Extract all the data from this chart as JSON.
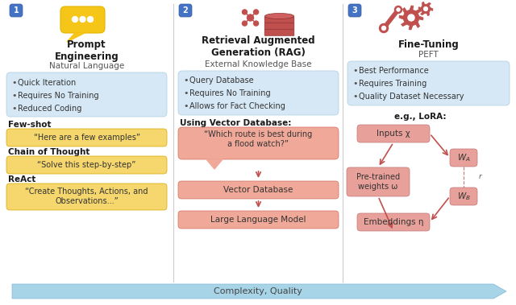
{
  "bg_color": "#ffffff",
  "blue_box_color": "#d6e8f5",
  "yellow_box_color": "#f5d76e",
  "salmon_box_color": "#e8a09a",
  "arrow_color": "#c0504d",
  "number_box_color": "#4472c4",
  "big_arrow_color": "#a8d4e8",
  "section1": {
    "title": "Prompt\nEngineering",
    "subtitle": "Natural Language",
    "bullet_items": [
      "Quick Iteration",
      "Requires No Training",
      "Reduced Coding"
    ],
    "techniques": [
      {
        "label": "Few-shot",
        "example": "“Here are a few examples”"
      },
      {
        "label": "Chain of Thought",
        "example": "“Solve this step-by-step”"
      },
      {
        "label": "ReAct",
        "example": "“Create Thoughts, Actions, and\nObservations...”"
      }
    ]
  },
  "section2": {
    "title": "Retrieval Augmented\nGeneration (RAG)",
    "subtitle": "External Knowledge Base",
    "bullet_items": [
      "Query Database",
      "Requires No Training",
      "Allows for Fact Checking"
    ],
    "vector_label": "Using Vector Database:",
    "query_text": "“Which route is best during\na flood watch?”",
    "flow_boxes": [
      "Vector Database",
      "Large Language Model"
    ]
  },
  "section3": {
    "title": "Fine-Tuning",
    "subtitle": "PEFT",
    "bullet_items": [
      "Best Performance",
      "Requires Training",
      "Quality Dataset Necessary"
    ],
    "lora_label": "e.g., LoRA:"
  },
  "bottom_label": "Complexity, Quality"
}
